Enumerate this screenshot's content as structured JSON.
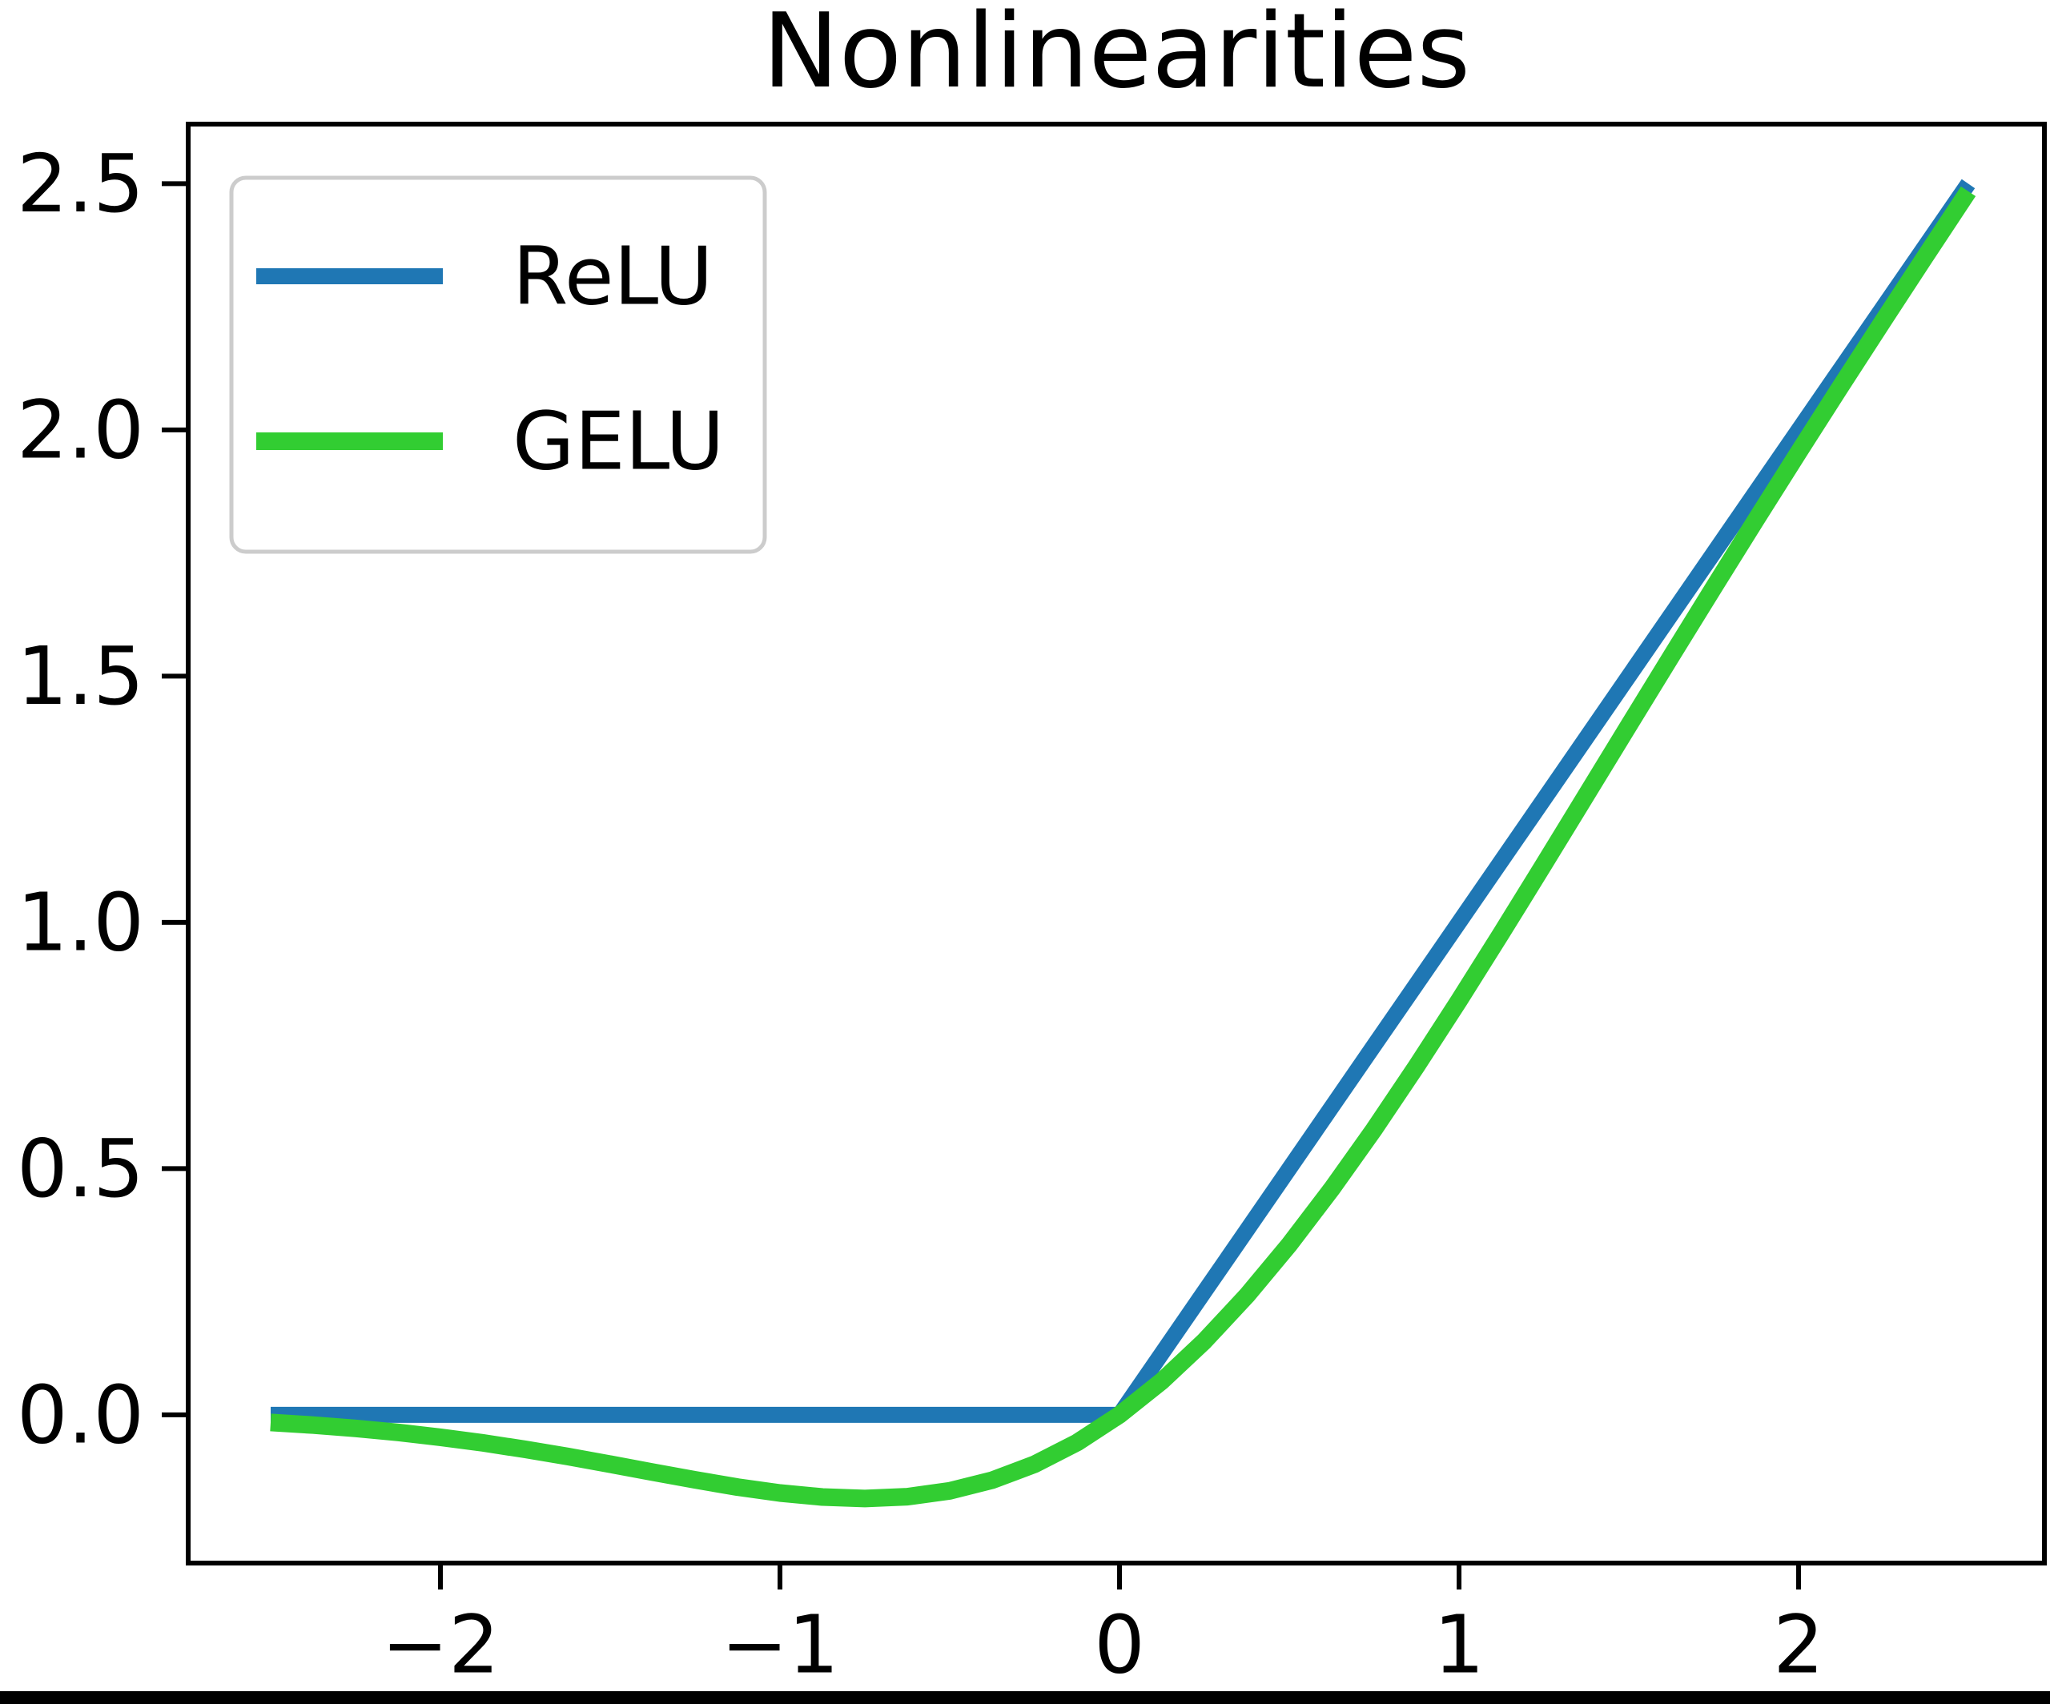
{
  "title": "Nonlinearities",
  "colors": {
    "relu": "#1f77b4",
    "gelu": "#32cd32",
    "spine": "#000000",
    "tick": "#000000",
    "legend_border": "#cccccc",
    "legend_background": "#ffffff",
    "figure_background": "#ffffff",
    "bottom_bar": "#000000"
  },
  "legend": {
    "position": "upper left",
    "entries": [
      {
        "label": "ReLU",
        "color": "#1f77b4",
        "linewidth": 20
      },
      {
        "label": "GELU",
        "color": "#32cd32",
        "linewidth": 22
      }
    ]
  },
  "chart_data": {
    "type": "line",
    "title": "Nonlinearities",
    "xlabel": "",
    "ylabel": "",
    "grid": false,
    "legend_position": "upper left",
    "xlim": [
      -2.743,
      2.724
    ],
    "ylim": [
      -0.301,
      2.621
    ],
    "xticks": {
      "values": [
        -2,
        -1,
        0,
        1,
        2
      ],
      "labels": [
        "−2",
        "−1",
        "0",
        "1",
        "2"
      ]
    },
    "yticks": {
      "values": [
        0.0,
        0.5,
        1.0,
        1.5,
        2.0,
        2.5
      ],
      "labels": [
        "0.0",
        "0.5",
        "1.0",
        "1.5",
        "2.0",
        "2.5"
      ]
    },
    "x": [
      -2.5,
      -2.375,
      -2.25,
      -2.125,
      -2.0,
      -1.875,
      -1.75,
      -1.625,
      -1.5,
      -1.375,
      -1.25,
      -1.125,
      -1.0,
      -0.875,
      -0.75,
      -0.625,
      -0.5,
      -0.375,
      -0.25,
      -0.125,
      0.0,
      0.125,
      0.25,
      0.375,
      0.5,
      0.625,
      0.75,
      0.875,
      1.0,
      1.125,
      1.25,
      1.375,
      1.5,
      1.625,
      1.75,
      1.875,
      2.0,
      2.125,
      2.25,
      2.375,
      2.5
    ],
    "series": [
      {
        "name": "ReLU",
        "color": "#1f77b4",
        "linewidth": 20,
        "values": [
          0,
          0,
          0,
          0,
          0,
          0,
          0,
          0,
          0,
          0,
          0,
          0,
          0,
          0,
          0,
          0,
          0,
          0,
          0,
          0,
          0.0,
          0.125,
          0.25,
          0.375,
          0.5,
          0.625,
          0.75,
          0.875,
          1.0,
          1.125,
          1.25,
          1.375,
          1.5,
          1.625,
          1.75,
          1.875,
          2.0,
          2.125,
          2.25,
          2.375,
          2.5
        ]
      },
      {
        "name": "GELU",
        "color": "#32cd32",
        "linewidth": 22,
        "values": [
          -0.0155,
          -0.0208,
          -0.0275,
          -0.0356,
          -0.0455,
          -0.057,
          -0.0701,
          -0.0846,
          -0.1002,
          -0.1163,
          -0.1321,
          -0.1467,
          -0.1587,
          -0.1669,
          -0.17,
          -0.1662,
          -0.1543,
          -0.1327,
          -0.1003,
          -0.0563,
          0.0,
          0.0687,
          0.1497,
          0.2423,
          0.3457,
          0.4588,
          0.58,
          0.7081,
          0.8413,
          0.9783,
          1.1179,
          1.2587,
          1.3998,
          1.5404,
          1.6799,
          1.818,
          1.9545,
          2.0894,
          2.2225,
          2.3542,
          2.4845
        ]
      }
    ]
  }
}
